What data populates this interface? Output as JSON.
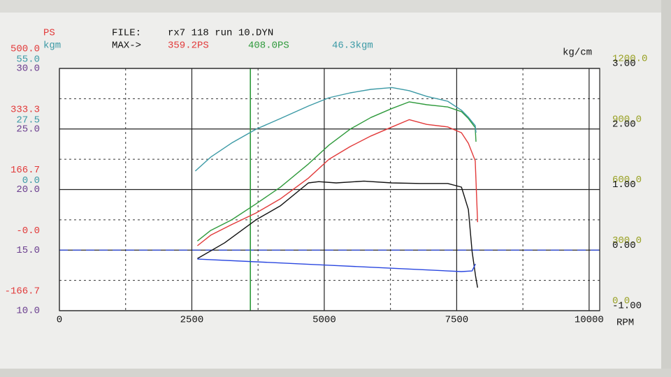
{
  "chart_data": {
    "type": "line",
    "file_label": "FILE:",
    "file_name": "rx7 118 run 10.DYN",
    "max_label": "MAX->",
    "max_values": [
      {
        "text": "359.2PS",
        "color": "#e23a3a"
      },
      {
        "text": "408.0PS",
        "color": "#2f9a3c"
      },
      {
        "text": "46.3kgm",
        "color": "#3c9aa6"
      }
    ],
    "x_label": "RPM",
    "xlim": [
      0,
      10200
    ],
    "xticks": [
      0,
      2500,
      5000,
      7500,
      10000
    ],
    "minor_xticks": [
      1250,
      3750,
      6250,
      8750
    ],
    "y_axes": [
      {
        "label": "PS",
        "color": "#e23a3a",
        "side": "left",
        "ylim": [
          -166.7,
          500
        ],
        "yticks": [
          {
            "value": 500,
            "label": "500.0"
          },
          333.3,
          166.7,
          {
            "value": 0,
            "label": "-0.0"
          },
          -166.7
        ]
      },
      {
        "label": "kgm",
        "color": "#3c9aa6",
        "side": "left",
        "ylim": [
          -55,
          55
        ],
        "yticks": [
          {
            "value": 55,
            "label": "55.0"
          },
          27.5,
          {
            "value": 0,
            "label": "0.0"
          }
        ]
      },
      {
        "color": "#6b3f8f",
        "side": "left",
        "ylim": [
          10,
          30
        ],
        "grid": true,
        "yticks": [
          {
            "value": 30,
            "label": "30.0"
          },
          {
            "value": 25,
            "label": "25.0"
          },
          {
            "value": 20,
            "label": "20.0"
          },
          {
            "value": 15,
            "label": "15.0"
          },
          {
            "value": 10,
            "label": "10.0"
          }
        ],
        "minor_yticks": [
          27.5,
          22.5,
          17.5,
          12.5
        ]
      },
      {
        "color": "#98a022",
        "side": "right",
        "ylim": [
          0,
          1200
        ],
        "yticks": [
          {
            "value": 1200,
            "label": "1200.0"
          },
          {
            "value": 900,
            "label": "900.0"
          },
          {
            "value": 600,
            "label": "600.0"
          },
          {
            "value": 300,
            "label": "300.0"
          },
          {
            "value": 0,
            "label": "0.0"
          }
        ]
      },
      {
        "label": "kg/cm",
        "color": "#111111",
        "side": "right",
        "ylim": [
          -1,
          3
        ],
        "yticks": [
          {
            "value": 3,
            "label": "3.00"
          },
          {
            "value": 2,
            "label": "2.00"
          },
          {
            "value": 1,
            "label": "1.00"
          },
          {
            "value": 0,
            "label": "0.00"
          },
          {
            "value": -1,
            "label": "-1.00"
          }
        ]
      }
    ],
    "series": [
      {
        "color": "#e23a3a",
        "axis": 0,
        "x": [
          2605,
          2855,
          3250,
          3710,
          4170,
          4700,
          5090,
          5490,
          5880,
          6280,
          6605,
          6935,
          7330,
          7590,
          7720,
          7850,
          7880,
          7895
        ],
        "values": [
          12,
          41,
          70,
          102,
          141,
          198,
          250,
          285,
          314,
          339,
          359,
          346,
          339,
          323,
          294,
          246,
          131,
          77
        ]
      },
      {
        "color": "#2f9a3c",
        "axis": 0,
        "x": [
          2605,
          2855,
          3250,
          3710,
          4170,
          4700,
          5090,
          5490,
          5880,
          6280,
          6605,
          6935,
          7330,
          7590,
          7720,
          7850,
          7865
        ],
        "values": [
          25,
          54,
          83,
          127,
          173,
          237,
          289,
          333,
          365,
          390,
          408,
          400,
          394,
          381,
          362,
          337,
          298
        ]
      },
      {
        "color": "#3c9aa6",
        "axis": 1,
        "x": [
          2565,
          2855,
          3250,
          3710,
          4170,
          4700,
          5090,
          5490,
          5880,
          6280,
          6605,
          6935,
          7330,
          7590,
          7720,
          7850,
          7865
        ],
        "values": [
          8.4,
          14.7,
          21.1,
          27.4,
          32.2,
          37.9,
          41.7,
          43.9,
          45.5,
          46.3,
          44.9,
          42.3,
          40.1,
          36.0,
          32.8,
          29.0,
          25.8
        ]
      },
      {
        "color": "#111111",
        "axis": 4,
        "x": [
          2605,
          3120,
          3710,
          4170,
          4700,
          4895,
          5225,
          5750,
          6275,
          6800,
          7330,
          7590,
          7720,
          7790,
          7855,
          7895
        ],
        "values": [
          -0.14,
          0.12,
          0.5,
          0.73,
          1.11,
          1.13,
          1.11,
          1.14,
          1.11,
          1.1,
          1.1,
          1.04,
          0.67,
          -0.02,
          -0.42,
          -0.62
        ]
      },
      {
        "color": "#2a47e0",
        "axis": 2,
        "x": [
          2605,
          5090,
          7590,
          7790,
          7855
        ],
        "values": [
          14.26,
          13.75,
          13.23,
          13.28,
          13.86
        ]
      }
    ],
    "hlines": [
      {
        "axis": 2,
        "value": 15,
        "color": "#2a47e0",
        "dashed": true
      }
    ],
    "vlines": [
      {
        "value": 3605,
        "color": "#2f9a3c"
      }
    ]
  }
}
